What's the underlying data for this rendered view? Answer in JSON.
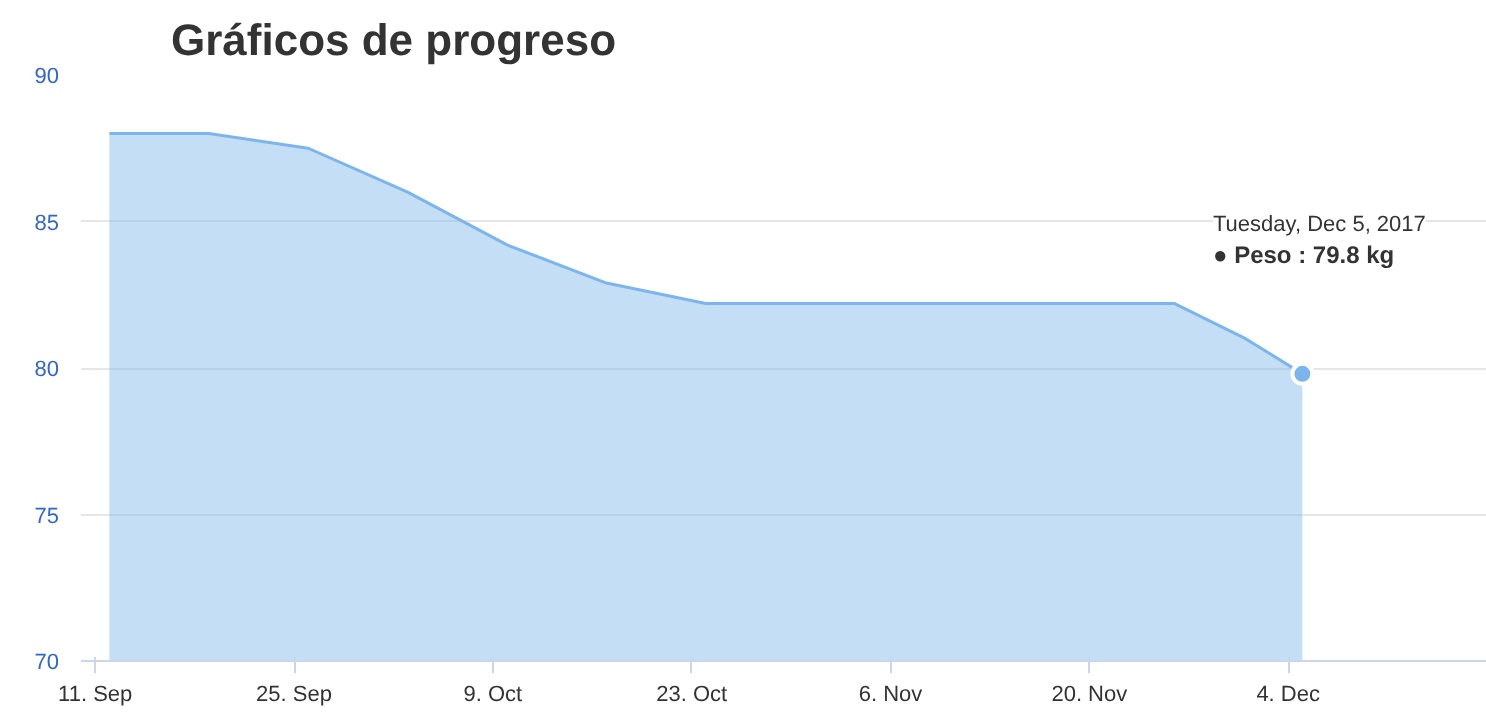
{
  "chart_data": {
    "type": "area",
    "title": "Gráficos de progreso",
    "x": [
      "2017-09-12",
      "2017-09-19",
      "2017-09-26",
      "2017-10-03",
      "2017-10-10",
      "2017-10-17",
      "2017-10-24",
      "2017-11-07",
      "2017-11-26",
      "2017-12-01",
      "2017-12-05"
    ],
    "series": [
      {
        "color": "#7cb5ec",
        "values": [
          88,
          88,
          87.5,
          86,
          84.2,
          82.9,
          82.2,
          82.2,
          82.2,
          81.0,
          79.8
        ]
      }
    ],
    "xlim": [
      "2017-09-10",
      "2017-12-18"
    ],
    "xticks": [
      {
        "value": "2017-09-11",
        "label": "11. Sep"
      },
      {
        "value": "2017-09-25",
        "label": "25. Sep"
      },
      {
        "value": "2017-10-09",
        "label": "9. Oct"
      },
      {
        "value": "2017-10-23",
        "label": "23. Oct"
      },
      {
        "value": "2017-11-06",
        "label": "6. Nov"
      },
      {
        "value": "2017-11-20",
        "label": "20. Nov"
      },
      {
        "value": "2017-12-04",
        "label": "4. Dec"
      }
    ],
    "ylim": [
      70,
      90
    ],
    "yticks": [
      70,
      75,
      80,
      85,
      90
    ],
    "grid": "y",
    "annotations": [
      "Tuesday, Dec 5, 2017",
      "● Peso : 79.8 kg"
    ]
  }
}
